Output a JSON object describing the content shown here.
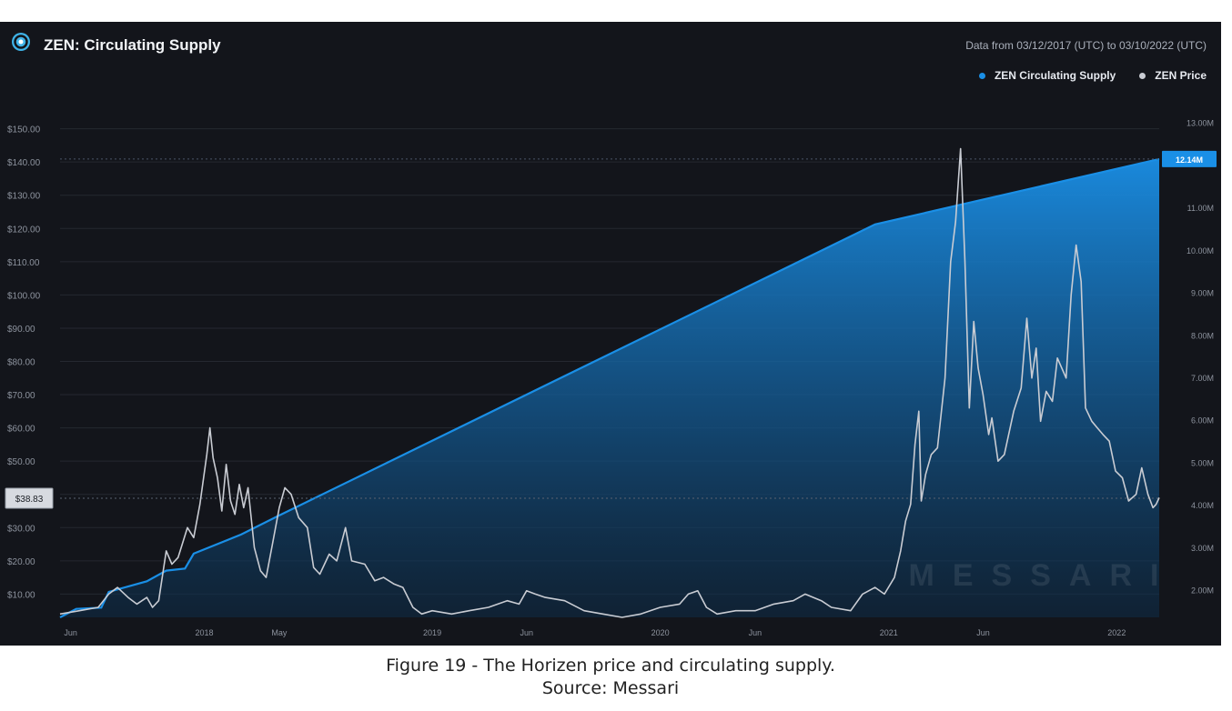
{
  "chart_data": {
    "type": "area",
    "title": "ZEN: Circulating Supply",
    "date_range": "Data from 03/12/2017 (UTC) to 03/10/2022 (UTC)",
    "legend_placement": "top-right",
    "grid": true,
    "series": [
      {
        "name": "ZEN Circulating Supply",
        "color": "#1a8fe6",
        "axis": "right",
        "unit": "M",
        "points": [
          [
            "2017-05-15",
            1.35
          ],
          [
            "2017-06-10",
            1.55
          ],
          [
            "2017-07-20",
            1.58
          ],
          [
            "2017-08-01",
            1.95
          ],
          [
            "2017-10-01",
            2.2
          ],
          [
            "2017-11-01",
            2.45
          ],
          [
            "2017-12-01",
            2.5
          ],
          [
            "2017-12-15",
            2.85
          ],
          [
            "2018-03-01",
            3.3
          ],
          [
            "2018-05-01",
            3.75
          ],
          [
            "2020-12-10",
            10.6
          ],
          [
            "2022-03-10",
            12.14
          ]
        ]
      },
      {
        "name": "ZEN Price",
        "color": "#c9ccd3",
        "axis": "left",
        "unit": "$",
        "points": [
          [
            "2017-05-15",
            4
          ],
          [
            "2017-06-15",
            5
          ],
          [
            "2017-07-15",
            6
          ],
          [
            "2017-08-01",
            10
          ],
          [
            "2017-08-15",
            12
          ],
          [
            "2017-09-01",
            9
          ],
          [
            "2017-09-15",
            7
          ],
          [
            "2017-10-01",
            9
          ],
          [
            "2017-10-10",
            6
          ],
          [
            "2017-10-20",
            8
          ],
          [
            "2017-11-01",
            23
          ],
          [
            "2017-11-10",
            19
          ],
          [
            "2017-11-20",
            21
          ],
          [
            "2017-12-05",
            30
          ],
          [
            "2017-12-15",
            27
          ],
          [
            "2017-12-25",
            37
          ],
          [
            "2018-01-05",
            52
          ],
          [
            "2018-01-10",
            60
          ],
          [
            "2018-01-15",
            51
          ],
          [
            "2018-01-22",
            45
          ],
          [
            "2018-01-29",
            35
          ],
          [
            "2018-02-05",
            49
          ],
          [
            "2018-02-12",
            38
          ],
          [
            "2018-02-19",
            34
          ],
          [
            "2018-02-26",
            43
          ],
          [
            "2018-03-05",
            36
          ],
          [
            "2018-03-12",
            42
          ],
          [
            "2018-03-22",
            24
          ],
          [
            "2018-04-01",
            17
          ],
          [
            "2018-04-10",
            15
          ],
          [
            "2018-04-20",
            25
          ],
          [
            "2018-05-01",
            36
          ],
          [
            "2018-05-10",
            42
          ],
          [
            "2018-05-20",
            40
          ],
          [
            "2018-06-01",
            33
          ],
          [
            "2018-06-15",
            30
          ],
          [
            "2018-06-25",
            18
          ],
          [
            "2018-07-05",
            16
          ],
          [
            "2018-07-20",
            22
          ],
          [
            "2018-08-01",
            20
          ],
          [
            "2018-08-15",
            30
          ],
          [
            "2018-08-25",
            20
          ],
          [
            "2018-09-15",
            19
          ],
          [
            "2018-10-01",
            14
          ],
          [
            "2018-10-15",
            15
          ],
          [
            "2018-11-01",
            13
          ],
          [
            "2018-11-15",
            12
          ],
          [
            "2018-12-01",
            6
          ],
          [
            "2018-12-15",
            4
          ],
          [
            "2019-01-01",
            5
          ],
          [
            "2019-02-01",
            4
          ],
          [
            "2019-03-01",
            5
          ],
          [
            "2019-04-01",
            6
          ],
          [
            "2019-05-01",
            8
          ],
          [
            "2019-05-20",
            7
          ],
          [
            "2019-06-01",
            11
          ],
          [
            "2019-06-15",
            10
          ],
          [
            "2019-07-01",
            9
          ],
          [
            "2019-08-01",
            8
          ],
          [
            "2019-09-01",
            5
          ],
          [
            "2019-10-01",
            4
          ],
          [
            "2019-11-01",
            3
          ],
          [
            "2019-12-01",
            4
          ],
          [
            "2020-01-01",
            6
          ],
          [
            "2020-02-01",
            7
          ],
          [
            "2020-02-15",
            10
          ],
          [
            "2020-03-01",
            11
          ],
          [
            "2020-03-15",
            6
          ],
          [
            "2020-04-01",
            4
          ],
          [
            "2020-05-01",
            5
          ],
          [
            "2020-06-01",
            5
          ],
          [
            "2020-07-01",
            7
          ],
          [
            "2020-08-01",
            8
          ],
          [
            "2020-08-20",
            10
          ],
          [
            "2020-09-15",
            8
          ],
          [
            "2020-10-01",
            6
          ],
          [
            "2020-11-01",
            5
          ],
          [
            "2020-11-20",
            10
          ],
          [
            "2020-12-10",
            12
          ],
          [
            "2020-12-25",
            10
          ],
          [
            "2021-01-10",
            15
          ],
          [
            "2021-01-20",
            23
          ],
          [
            "2021-01-28",
            32
          ],
          [
            "2021-02-05",
            37
          ],
          [
            "2021-02-12",
            55
          ],
          [
            "2021-02-18",
            65
          ],
          [
            "2021-02-22",
            38
          ],
          [
            "2021-03-01",
            46
          ],
          [
            "2021-03-10",
            52
          ],
          [
            "2021-03-20",
            54
          ],
          [
            "2021-04-01",
            75
          ],
          [
            "2021-04-10",
            110
          ],
          [
            "2021-04-18",
            122
          ],
          [
            "2021-04-26",
            144
          ],
          [
            "2021-05-03",
            110
          ],
          [
            "2021-05-10",
            66
          ],
          [
            "2021-05-17",
            92
          ],
          [
            "2021-05-24",
            78
          ],
          [
            "2021-06-01",
            70
          ],
          [
            "2021-06-10",
            58
          ],
          [
            "2021-06-15",
            63
          ],
          [
            "2021-06-25",
            50
          ],
          [
            "2021-07-05",
            52
          ],
          [
            "2021-07-20",
            65
          ],
          [
            "2021-08-01",
            72
          ],
          [
            "2021-08-10",
            93
          ],
          [
            "2021-08-18",
            75
          ],
          [
            "2021-08-25",
            84
          ],
          [
            "2021-09-01",
            62
          ],
          [
            "2021-09-10",
            71
          ],
          [
            "2021-09-20",
            68
          ],
          [
            "2021-09-28",
            81
          ],
          [
            "2021-10-05",
            78
          ],
          [
            "2021-10-12",
            75
          ],
          [
            "2021-10-20",
            100
          ],
          [
            "2021-10-28",
            115
          ],
          [
            "2021-11-05",
            104
          ],
          [
            "2021-11-12",
            66
          ],
          [
            "2021-11-22",
            62
          ],
          [
            "2021-12-01",
            60
          ],
          [
            "2021-12-10",
            58
          ],
          [
            "2021-12-20",
            56
          ],
          [
            "2021-12-30",
            47
          ],
          [
            "2022-01-10",
            45
          ],
          [
            "2022-01-20",
            38
          ],
          [
            "2022-02-01",
            40
          ],
          [
            "2022-02-10",
            48
          ],
          [
            "2022-02-20",
            40
          ],
          [
            "2022-02-28",
            36
          ],
          [
            "2022-03-05",
            37
          ],
          [
            "2022-03-10",
            39
          ]
        ]
      }
    ],
    "x_range": [
      "2017-05-15",
      "2022-03-10"
    ],
    "x_ticks": [
      {
        "label": "Jun",
        "date": "2017-06-01"
      },
      {
        "label": "2018",
        "date": "2018-01-01"
      },
      {
        "label": "May",
        "date": "2018-05-01"
      },
      {
        "label": "2019",
        "date": "2019-01-01"
      },
      {
        "label": "Jun",
        "date": "2019-06-01"
      },
      {
        "label": "2020",
        "date": "2020-01-01"
      },
      {
        "label": "Jun",
        "date": "2020-06-01"
      },
      {
        "label": "2021",
        "date": "2021-01-01"
      },
      {
        "label": "Jun",
        "date": "2021-06-01"
      },
      {
        "label": "2022",
        "date": "2022-01-01"
      }
    ],
    "y_left": {
      "range": [
        3,
        157
      ],
      "ticks": [
        10,
        20,
        30,
        40,
        50,
        60,
        70,
        80,
        90,
        100,
        110,
        120,
        130,
        140,
        150
      ],
      "tick_labels": [
        "$10.00",
        "$20.00",
        "$30.00",
        "$40.00",
        "$50.00",
        "$60.00",
        "$70.00",
        "$80.00",
        "$90.00",
        "$100.00",
        "$110.00",
        "$120.00",
        "$130.00",
        "$140.00",
        "$150.00"
      ],
      "current_label": "$38.83",
      "current_value": 38.83
    },
    "y_right": {
      "range": [
        1.35,
        13.4
      ],
      "ticks": [
        2,
        3,
        4,
        5,
        6,
        7,
        8,
        9,
        10,
        11,
        13
      ],
      "tick_labels": [
        "2.00M",
        "3.00M",
        "4.00M",
        "5.00M",
        "6.00M",
        "7.00M",
        "8.00M",
        "9.00M",
        "10.00M",
        "11.00M",
        "13.00M"
      ],
      "current_label": "12.14M",
      "current_value": 12.14
    },
    "watermark": "MESSARI"
  },
  "caption": {
    "line1": "Figure 19 - The Horizen price and circulating supply.",
    "line2": "Source: Messari"
  },
  "colors": {
    "panel_bg": "#13151b",
    "grid": "#252830",
    "supply": "#1a8fe6",
    "price": "#c9ccd3",
    "tick_text": "#8d939e"
  }
}
